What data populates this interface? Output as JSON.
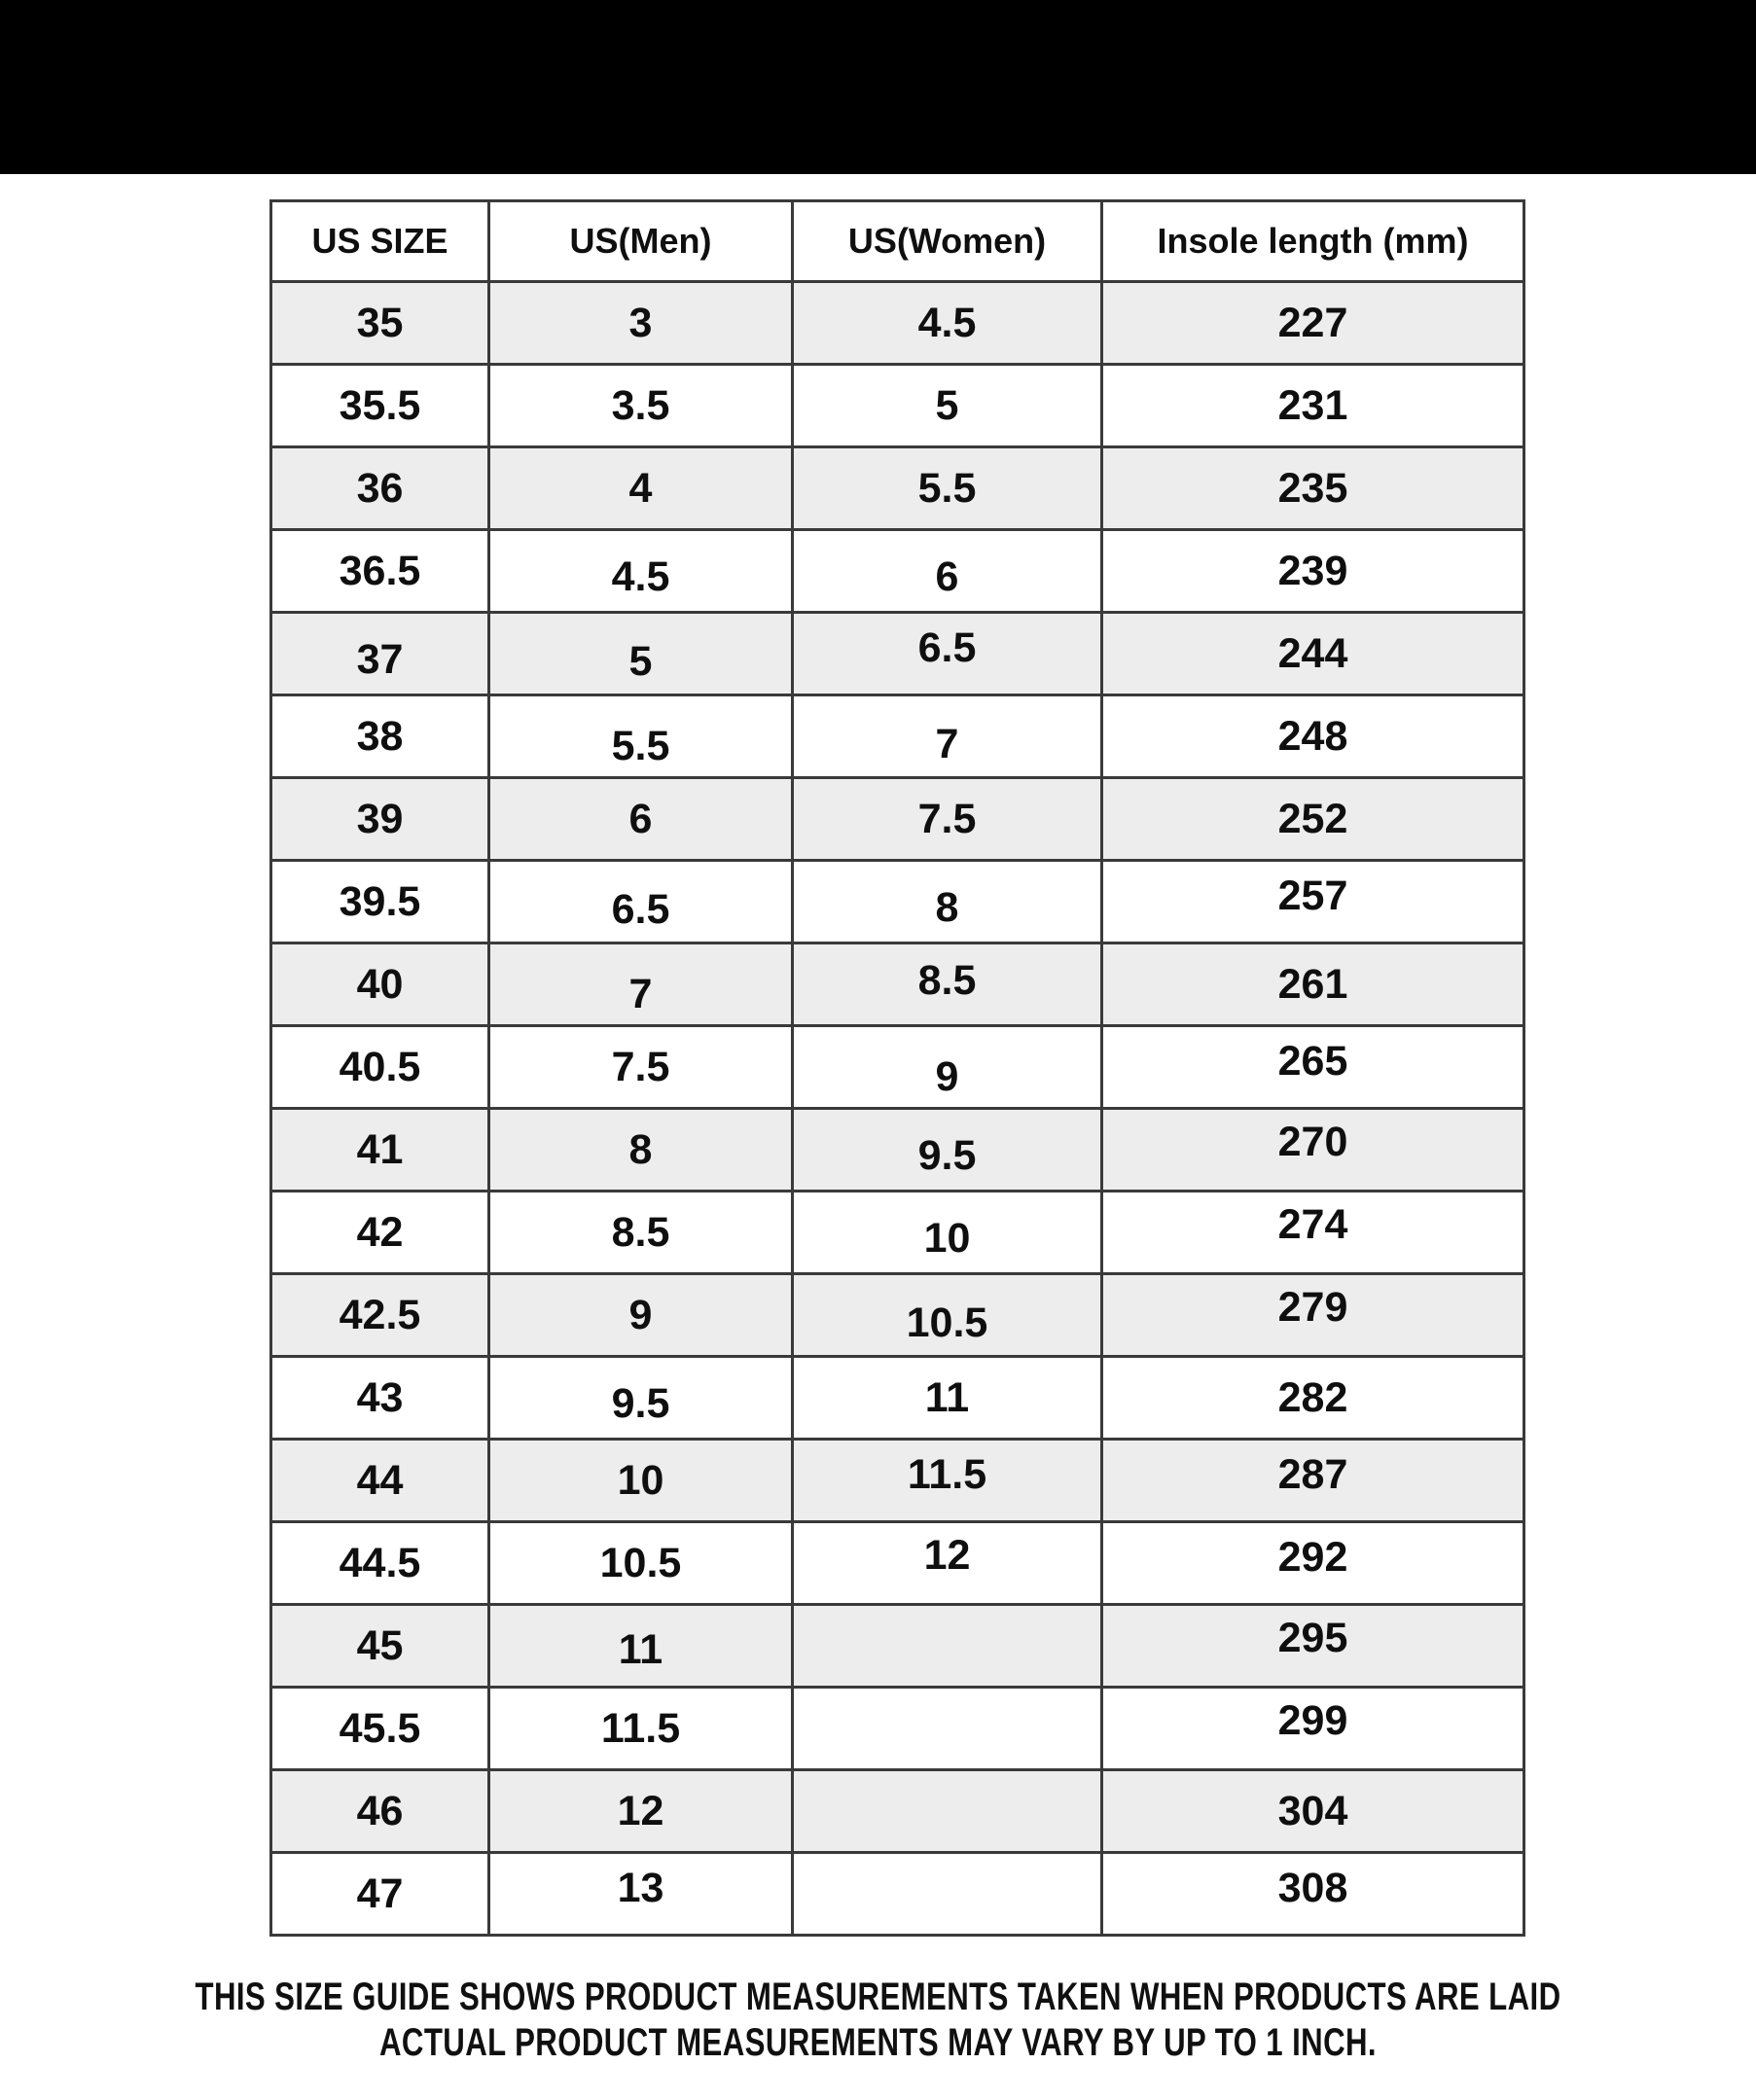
{
  "colors": {
    "top_bar": "#000000",
    "row_alt": "#ededed",
    "row_base": "#ffffff",
    "grid_border": "#3a3a3a",
    "text": "#0f0f0f"
  },
  "chart_data": {
    "type": "table",
    "title": "",
    "columns": [
      "US SIZE",
      "US(Men)",
      "US(Women)",
      "Insole length (mm)"
    ],
    "rows": [
      [
        "35",
        "3",
        "4.5",
        "227"
      ],
      [
        "35.5",
        "3.5",
        "5",
        "231"
      ],
      [
        "36",
        "4",
        "5.5",
        "235"
      ],
      [
        "36.5",
        "4.5",
        "6",
        "239"
      ],
      [
        "37",
        "5",
        "6.5",
        "244"
      ],
      [
        "38",
        "5.5",
        "7",
        "248"
      ],
      [
        "39",
        "6",
        "7.5",
        "252"
      ],
      [
        "39.5",
        "6.5",
        "8",
        "257"
      ],
      [
        "40",
        "7",
        "8.5",
        "261"
      ],
      [
        "40.5",
        "7.5",
        "9",
        "265"
      ],
      [
        "41",
        "8",
        "9.5",
        "270"
      ],
      [
        "42",
        "8.5",
        "10",
        "274"
      ],
      [
        "42.5",
        "9",
        "10.5",
        "279"
      ],
      [
        "43",
        "9.5",
        "11",
        "282"
      ],
      [
        "44",
        "10",
        "11.5",
        "287"
      ],
      [
        "44.5",
        "10.5",
        "12",
        "292"
      ],
      [
        "45",
        "11",
        "",
        "295"
      ],
      [
        "45.5",
        "11.5",
        "",
        "299"
      ],
      [
        "46",
        "12",
        "",
        "304"
      ],
      [
        "47",
        "13",
        "",
        "308"
      ]
    ],
    "annotations": [
      "THIS SIZE GUIDE SHOWS PRODUCT MEASUREMENTS TAKEN WHEN PRODUCTS ARE LAID",
      "ACTUAL PRODUCT MEASUREMENTS MAY VARY BY UP TO 1 INCH."
    ],
    "layout": {
      "grid": "on",
      "row_striping": "alternating starting gray",
      "legend": "none"
    }
  }
}
